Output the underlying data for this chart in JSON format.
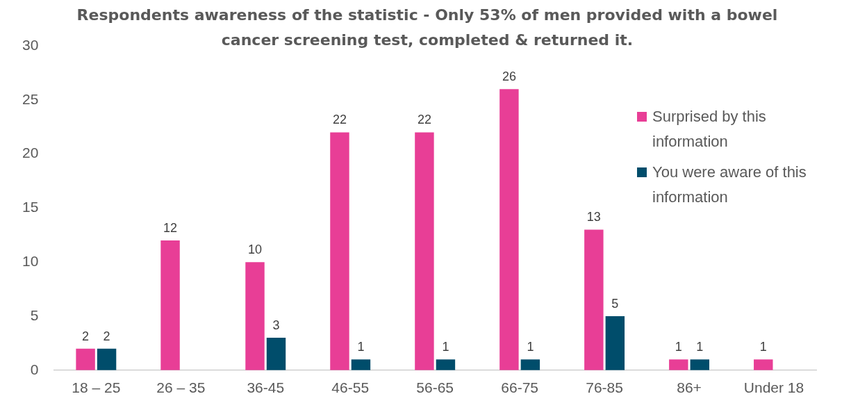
{
  "chart_data": {
    "type": "bar",
    "title": "Respondents awareness of the statistic - Only 53% of men provided with a bowel cancer screening test, completed & returned it.",
    "categories": [
      "18 – 25",
      "26 – 35",
      "36-45",
      "46-55",
      "56-65",
      "66-75",
      "76-85",
      "86+",
      "Under 18"
    ],
    "series": [
      {
        "name": "Surprised by this information",
        "color": "#e83e96",
        "values": [
          2,
          12,
          10,
          22,
          22,
          26,
          13,
          1,
          1
        ]
      },
      {
        "name": "You were aware of this information",
        "color": "#004d6b",
        "values": [
          2,
          null,
          3,
          1,
          1,
          1,
          5,
          1,
          null
        ]
      }
    ],
    "ylim": [
      0,
      30
    ],
    "yticks": [
      0,
      5,
      10,
      15,
      20,
      25,
      30
    ],
    "grid": false,
    "legend": "right",
    "data_labels": true
  }
}
